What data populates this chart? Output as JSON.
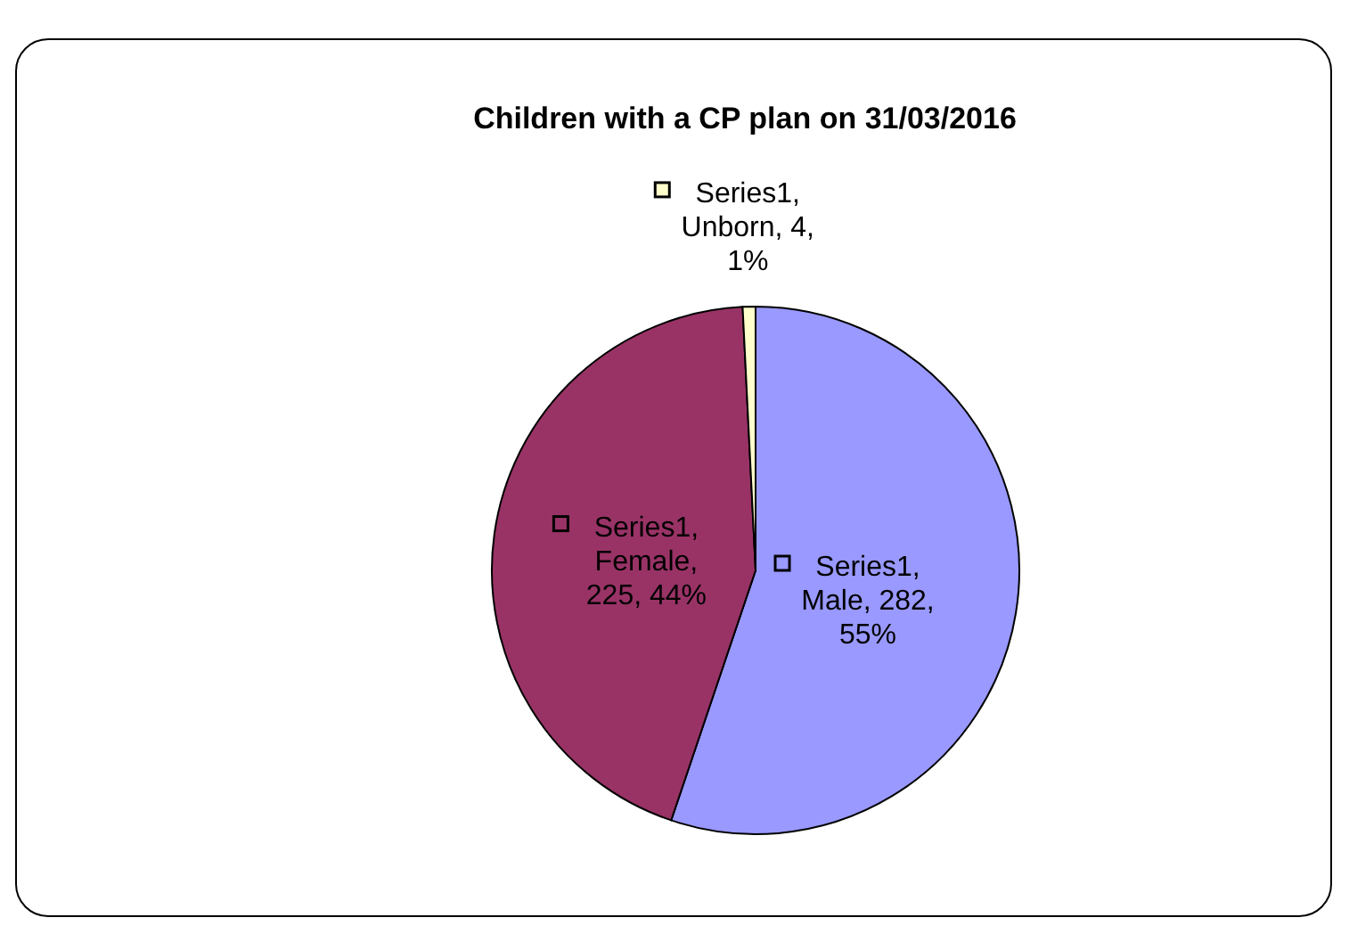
{
  "chart_data": {
    "type": "pie",
    "title": "Children with a CP plan on 31/03/2016",
    "categories": [
      null,
      null,
      null
    ],
    "colors": [
      "#9999ff",
      "#993366",
      "#ffffcc"
    ],
    "values": [
      282,
      225,
      4
    ],
    "value_labels": [
      "Series1, Male, 282, 55%",
      "Series1, Female, 225, 44%",
      "Series1, Unborn, 4, 1%"
    ]
  }
}
